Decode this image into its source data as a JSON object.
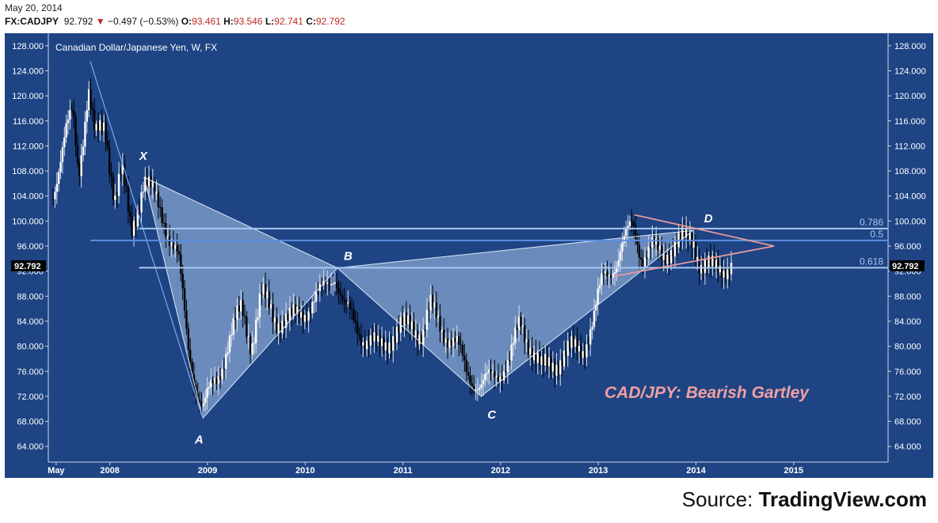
{
  "header": {
    "date": "May 20, 2014",
    "symbol": "FX:CADJPY",
    "last": "92.792",
    "change_arrow": "▼",
    "change": "−0.497 (−0.53%)",
    "open_label": "O:",
    "open": "93.461",
    "high_label": "H:",
    "high": "93.546",
    "low_label": "L:",
    "low": "92.741",
    "close_label": "C:",
    "close": "92.792"
  },
  "source": {
    "prefix": "Source: ",
    "name": "TradingView.com"
  },
  "colors": {
    "background": "#1e4484",
    "up_candle": "#ffffff",
    "down_candle": "#000000",
    "pattern_fill": "#a9c6ea",
    "triangle": "#e79a9a",
    "fib_line": "#a8c8f0",
    "fib_line_mid": "#5b8ee0",
    "annotation": "#f0a0a0"
  },
  "chart_data": {
    "type": "candlestick",
    "title": "Canadian Dollar/Japanese Yen, W, FX",
    "annotation": "CAD/JPY: Bearish Gartley",
    "price_label": "92.792",
    "y_ticks": [
      "128.000",
      "124.000",
      "120.000",
      "116.000",
      "112.000",
      "108.000",
      "104.000",
      "100.000",
      "96.000",
      "92.000",
      "88.000",
      "84.000",
      "80.000",
      "76.000",
      "72.000",
      "68.000",
      "64.000"
    ],
    "x_ticks": [
      "May",
      "2008",
      "2009",
      "2010",
      "2011",
      "2012",
      "2013",
      "2014",
      "2015"
    ],
    "ylim": [
      61.5,
      130
    ],
    "x_start": 2007.37,
    "pattern_points": [
      {
        "label": "X",
        "date": 2008.35,
        "value": 107.0
      },
      {
        "label": "A",
        "date": 2008.95,
        "value": 68.5
      },
      {
        "label": "B",
        "date": 2010.33,
        "value": 92.5
      },
      {
        "label": "C",
        "date": 2011.8,
        "value": 72.0
      },
      {
        "label": "D",
        "date": 2013.97,
        "value": 98.5
      }
    ],
    "fib_levels": [
      {
        "label": "0.786",
        "value": 98.8
      },
      {
        "label": "0.5",
        "value": 96.9
      },
      {
        "label": "0.618",
        "value": 92.55
      }
    ],
    "trend_line": {
      "from": {
        "date": 2007.8,
        "value": 125.5
      },
      "to": {
        "date": 2008.95,
        "value": 68.5
      }
    },
    "triangle": {
      "upper": {
        "from": {
          "date": 2013.37,
          "value": 101.0
        },
        "to": {
          "date": 2014.8,
          "value": 96.0
        }
      },
      "lower": {
        "from": {
          "date": 2013.17,
          "value": 91.2
        },
        "to": {
          "date": 2014.8,
          "value": 96.0
        }
      }
    },
    "weekly_close": [
      {
        "date": 2007.4,
        "value": 103.5
      },
      {
        "date": 2007.55,
        "value": 114.0
      },
      {
        "date": 2007.62,
        "value": 117.0
      },
      {
        "date": 2007.68,
        "value": 107.5
      },
      {
        "date": 2007.78,
        "value": 121.5
      },
      {
        "date": 2007.85,
        "value": 113.0
      },
      {
        "date": 2007.95,
        "value": 115.0
      },
      {
        "date": 2008.05,
        "value": 104.0
      },
      {
        "date": 2008.12,
        "value": 108.0
      },
      {
        "date": 2008.22,
        "value": 98.0
      },
      {
        "date": 2008.35,
        "value": 107.0
      },
      {
        "date": 2008.55,
        "value": 100.5
      },
      {
        "date": 2008.7,
        "value": 94.0
      },
      {
        "date": 2008.8,
        "value": 80.0
      },
      {
        "date": 2008.88,
        "value": 74.0
      },
      {
        "date": 2008.95,
        "value": 70.0
      },
      {
        "date": 2009.1,
        "value": 75.0
      },
      {
        "date": 2009.2,
        "value": 80.0
      },
      {
        "date": 2009.35,
        "value": 86.0
      },
      {
        "date": 2009.45,
        "value": 80.5
      },
      {
        "date": 2009.55,
        "value": 88.0
      },
      {
        "date": 2009.7,
        "value": 84.5
      },
      {
        "date": 2009.85,
        "value": 84.0
      },
      {
        "date": 2010.0,
        "value": 86.0
      },
      {
        "date": 2010.15,
        "value": 88.0
      },
      {
        "date": 2010.3,
        "value": 92.0
      },
      {
        "date": 2010.4,
        "value": 86.0
      },
      {
        "date": 2010.5,
        "value": 84.0
      },
      {
        "date": 2010.6,
        "value": 81.5
      },
      {
        "date": 2010.75,
        "value": 79.5
      },
      {
        "date": 2010.9,
        "value": 82.0
      },
      {
        "date": 2011.1,
        "value": 83.5
      },
      {
        "date": 2011.2,
        "value": 82.0
      },
      {
        "date": 2011.28,
        "value": 86.0
      },
      {
        "date": 2011.4,
        "value": 83.0
      },
      {
        "date": 2011.55,
        "value": 80.0
      },
      {
        "date": 2011.65,
        "value": 76.0
      },
      {
        "date": 2011.8,
        "value": 73.5
      },
      {
        "date": 2011.95,
        "value": 75.5
      },
      {
        "date": 2012.1,
        "value": 78.0
      },
      {
        "date": 2012.2,
        "value": 83.5
      },
      {
        "date": 2012.32,
        "value": 80.0
      },
      {
        "date": 2012.42,
        "value": 76.0
      },
      {
        "date": 2012.55,
        "value": 77.5
      },
      {
        "date": 2012.7,
        "value": 79.0
      },
      {
        "date": 2012.85,
        "value": 80.0
      },
      {
        "date": 2012.95,
        "value": 84.0
      },
      {
        "date": 2013.05,
        "value": 91.0
      },
      {
        "date": 2013.2,
        "value": 94.0
      },
      {
        "date": 2013.35,
        "value": 99.5
      },
      {
        "date": 2013.45,
        "value": 94.5
      },
      {
        "date": 2013.55,
        "value": 95.5
      },
      {
        "date": 2013.65,
        "value": 94.5
      },
      {
        "date": 2013.75,
        "value": 96.0
      },
      {
        "date": 2013.85,
        "value": 96.5
      },
      {
        "date": 2013.97,
        "value": 97.5
      },
      {
        "date": 2014.05,
        "value": 93.0
      },
      {
        "date": 2014.15,
        "value": 92.0
      },
      {
        "date": 2014.25,
        "value": 93.0
      },
      {
        "date": 2014.38,
        "value": 92.8
      }
    ]
  }
}
